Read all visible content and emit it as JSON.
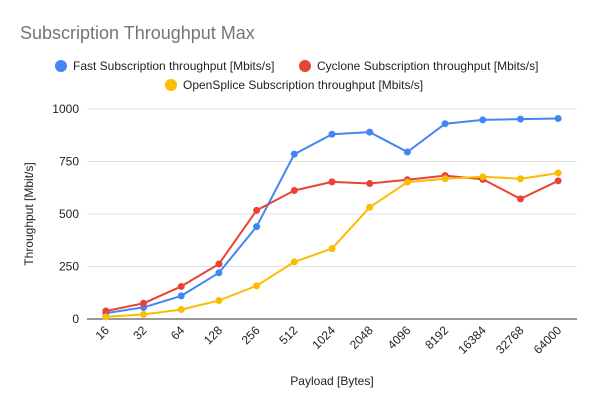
{
  "chart_data": {
    "type": "line",
    "title": "Subscription Throughput Max",
    "xlabel": "Payload [Bytes]",
    "ylabel": "Throughput [Mbit/s]",
    "categories": [
      "16",
      "32",
      "64",
      "128",
      "256",
      "512",
      "1024",
      "2048",
      "4096",
      "8192",
      "16384",
      "32768",
      "64000"
    ],
    "ylim": [
      0,
      1000
    ],
    "yticks": [
      0,
      250,
      500,
      750,
      1000
    ],
    "grid": true,
    "legend_position": "top",
    "series": [
      {
        "name": "Fast Subscription throughput [Mbits/s]",
        "color": "#4285f4",
        "values": [
          28,
          55,
          110,
          220,
          440,
          785,
          880,
          890,
          795,
          930,
          948,
          952,
          955
        ]
      },
      {
        "name": "Cyclone Subscription throughput [Mbits/s]",
        "color": "#ea4335",
        "values": [
          38,
          75,
          155,
          262,
          517,
          612,
          653,
          645,
          663,
          683,
          665,
          572,
          658
        ]
      },
      {
        "name": "OpenSplice Subscription throughput [Mbits/s]",
        "color": "#fbbc04",
        "values": [
          10,
          22,
          45,
          88,
          158,
          272,
          335,
          532,
          652,
          668,
          677,
          668,
          695
        ]
      }
    ]
  }
}
